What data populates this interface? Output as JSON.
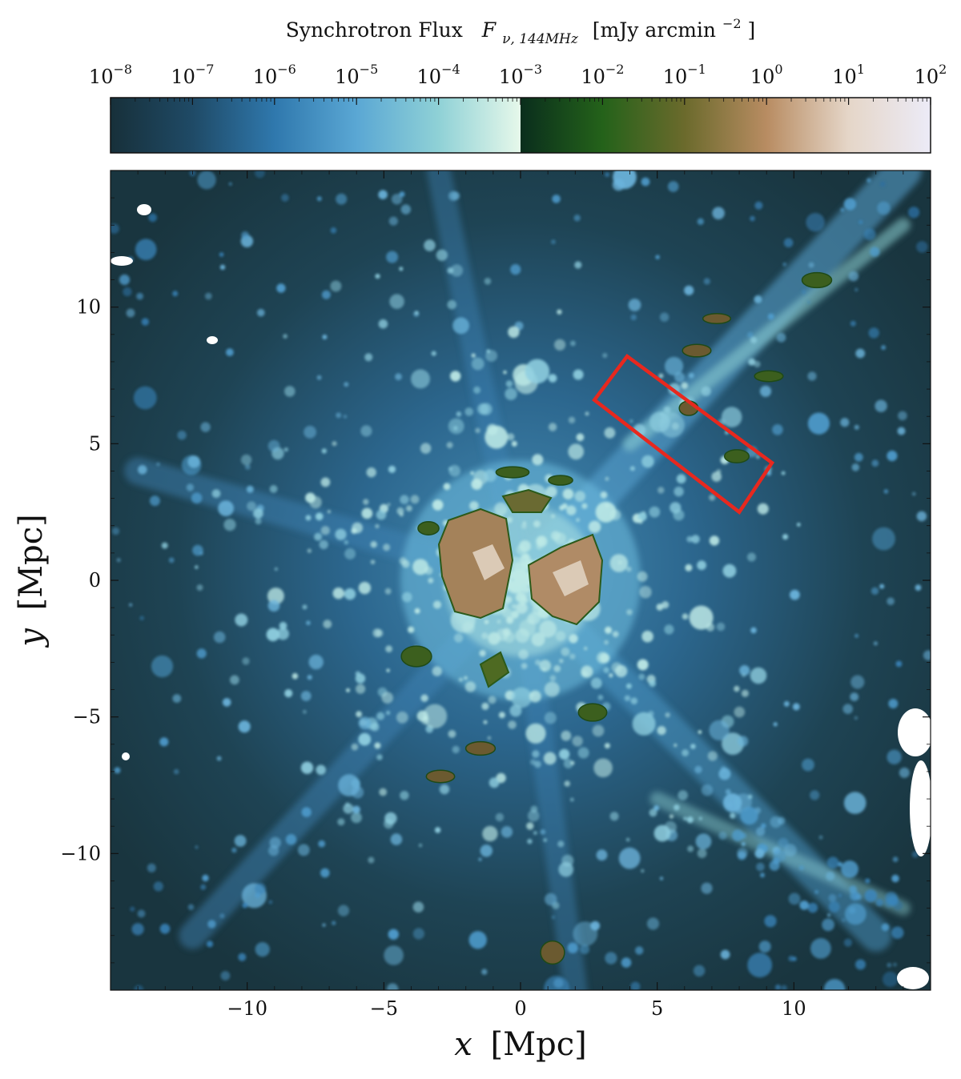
{
  "chart_data": {
    "type": "heatmap",
    "colorbar": {
      "title_prefix": "Synchrotron Flux",
      "title_symbol": "F",
      "title_subscript": "ν, 144MHz",
      "title_unit": "[mJy arcmin",
      "title_unit_exp": "−2",
      "title_unit_end": "]",
      "scale": "log",
      "range": [
        1e-08,
        100
      ],
      "ticks": [
        {
          "base": "10",
          "exp": "−8",
          "value": 1e-08
        },
        {
          "base": "10",
          "exp": "−7",
          "value": 1e-07
        },
        {
          "base": "10",
          "exp": "−6",
          "value": 1e-06
        },
        {
          "base": "10",
          "exp": "−5",
          "value": 1e-05
        },
        {
          "base": "10",
          "exp": "−4",
          "value": 0.0001
        },
        {
          "base": "10",
          "exp": "−3",
          "value": 0.001
        },
        {
          "base": "10",
          "exp": "−2",
          "value": 0.01
        },
        {
          "base": "10",
          "exp": "−1",
          "value": 0.1
        },
        {
          "base": "10",
          "exp": "0",
          "value": 1
        },
        {
          "base": "10",
          "exp": "1",
          "value": 10
        },
        {
          "base": "10",
          "exp": "2",
          "value": 100
        }
      ],
      "colors_low": [
        "#17303a",
        "#1f4a66",
        "#2f78ad",
        "#5aa7d4",
        "#8fd1d6",
        "#e6f8ea"
      ],
      "colors_high": [
        "#0a2e1c",
        "#24621a",
        "#6b6a2c",
        "#b88c62",
        "#e5d6c8",
        "#ecebf7"
      ]
    },
    "x_axis": {
      "label_var": "x",
      "label_unit": "[Mpc]",
      "range": [
        -15,
        15
      ],
      "ticks": [
        -10,
        -5,
        0,
        5,
        10
      ]
    },
    "y_axis": {
      "label_var": "y",
      "label_unit": "[Mpc]",
      "range": [
        -15,
        15
      ],
      "ticks": [
        -10,
        -5,
        0,
        5,
        10
      ]
    },
    "annotation": {
      "shape": "rectangle",
      "color": "#e8281e",
      "corners_mpc": [
        [
          3.9,
          8.2
        ],
        [
          9.2,
          4.3
        ],
        [
          8.0,
          2.5
        ],
        [
          2.7,
          6.6
        ]
      ]
    }
  }
}
